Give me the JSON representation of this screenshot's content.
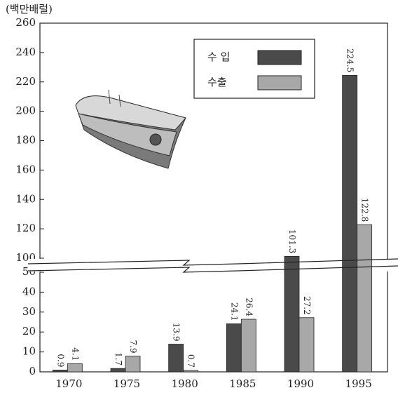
{
  "chart_data": {
    "type": "bar",
    "unit_label": "(백만배럴)",
    "categories": [
      "1970",
      "1975",
      "1980",
      "1985",
      "1990",
      "1995"
    ],
    "series": [
      {
        "name": "수 입",
        "color": "#4a4a4a",
        "values": [
          0.9,
          1.7,
          13.9,
          24.1,
          101.3,
          224.5
        ]
      },
      {
        "name": "수출",
        "color": "#a8a8a8",
        "values": [
          4.1,
          7.9,
          0.7,
          26.4,
          27.2,
          122.8
        ]
      }
    ],
    "ylim": [
      0,
      260
    ],
    "axis_break": [
      50,
      100
    ],
    "yticks": [
      0,
      10,
      20,
      30,
      40,
      50,
      100,
      120,
      140,
      160,
      180,
      200,
      220,
      240,
      260
    ]
  }
}
